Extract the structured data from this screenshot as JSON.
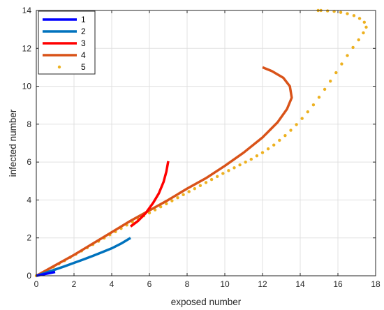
{
  "chart_data": {
    "type": "line",
    "title": "",
    "xlabel": "exposed number",
    "ylabel": "infected number",
    "xlim": [
      0,
      18
    ],
    "ylim": [
      0,
      14
    ],
    "xticks": [
      0,
      2,
      4,
      6,
      8,
      10,
      12,
      14,
      16,
      18
    ],
    "yticks": [
      0,
      2,
      4,
      6,
      8,
      10,
      12,
      14
    ],
    "xtick_labels": [
      "0",
      "2",
      "4",
      "6",
      "8",
      "10",
      "12",
      "14",
      "16",
      "18"
    ],
    "ytick_labels": [
      "0",
      "2",
      "4",
      "6",
      "8",
      "10",
      "12",
      "14"
    ],
    "grid": true,
    "legend_position": "top-left",
    "series": [
      {
        "name": "1",
        "style": "line",
        "color": "#0000ff",
        "points": [
          [
            0,
            0
          ],
          [
            0.5,
            0.1
          ],
          [
            1,
            0.2
          ]
        ]
      },
      {
        "name": "2",
        "style": "line",
        "color": "#0072bd",
        "points": [
          [
            0,
            0
          ],
          [
            0.5,
            0.16
          ],
          [
            1,
            0.33
          ],
          [
            1.5,
            0.5
          ],
          [
            2,
            0.68
          ],
          [
            2.5,
            0.86
          ],
          [
            3,
            1.05
          ],
          [
            3.5,
            1.25
          ],
          [
            4,
            1.45
          ],
          [
            4.5,
            1.7
          ],
          [
            5,
            2.0
          ]
        ]
      },
      {
        "name": "3",
        "style": "line",
        "color": "#ff0000",
        "points": [
          [
            5.0,
            2.6
          ],
          [
            5.4,
            2.9
          ],
          [
            5.8,
            3.3
          ],
          [
            6.2,
            3.85
          ],
          [
            6.5,
            4.35
          ],
          [
            6.75,
            4.95
          ],
          [
            6.9,
            5.5
          ],
          [
            7.0,
            6.05
          ]
        ]
      },
      {
        "name": "4",
        "style": "line",
        "color": "#d95319",
        "points": [
          [
            0,
            0
          ],
          [
            1,
            0.55
          ],
          [
            2,
            1.1
          ],
          [
            3,
            1.7
          ],
          [
            4,
            2.3
          ],
          [
            5,
            2.9
          ],
          [
            6,
            3.45
          ],
          [
            7,
            4.0
          ],
          [
            8,
            4.6
          ],
          [
            9,
            5.15
          ],
          [
            10,
            5.8
          ],
          [
            11,
            6.5
          ],
          [
            12,
            7.3
          ],
          [
            12.8,
            8.1
          ],
          [
            13.3,
            8.8
          ],
          [
            13.55,
            9.4
          ],
          [
            13.45,
            10.0
          ],
          [
            13.1,
            10.45
          ],
          [
            12.5,
            10.8
          ],
          [
            12.0,
            11.0
          ]
        ]
      },
      {
        "name": "5",
        "style": "markers",
        "color": "#edb120",
        "points": [
          [
            0,
            0
          ],
          [
            0.3,
            0.15
          ],
          [
            0.6,
            0.3
          ],
          [
            0.9,
            0.46
          ],
          [
            1.2,
            0.63
          ],
          [
            1.5,
            0.8
          ],
          [
            1.8,
            0.97
          ],
          [
            2.1,
            1.14
          ],
          [
            2.4,
            1.31
          ],
          [
            2.7,
            1.48
          ],
          [
            3.0,
            1.65
          ],
          [
            3.3,
            1.82
          ],
          [
            3.6,
            1.99
          ],
          [
            3.9,
            2.16
          ],
          [
            4.2,
            2.33
          ],
          [
            4.5,
            2.5
          ],
          [
            4.8,
            2.68
          ],
          [
            5.1,
            2.84
          ],
          [
            5.4,
            3.0
          ],
          [
            5.7,
            3.16
          ],
          [
            6.0,
            3.32
          ],
          [
            6.3,
            3.48
          ],
          [
            6.6,
            3.64
          ],
          [
            6.9,
            3.8
          ],
          [
            7.2,
            3.96
          ],
          [
            7.5,
            4.12
          ],
          [
            7.8,
            4.28
          ],
          [
            8.1,
            4.44
          ],
          [
            8.4,
            4.6
          ],
          [
            8.7,
            4.76
          ],
          [
            9.0,
            4.92
          ],
          [
            9.3,
            5.08
          ],
          [
            9.6,
            5.24
          ],
          [
            9.9,
            5.4
          ],
          [
            10.2,
            5.55
          ],
          [
            10.5,
            5.7
          ],
          [
            10.8,
            5.85
          ],
          [
            11.1,
            6.0
          ],
          [
            11.4,
            6.15
          ],
          [
            11.7,
            6.33
          ],
          [
            12.0,
            6.5
          ],
          [
            12.3,
            6.7
          ],
          [
            12.6,
            6.9
          ],
          [
            12.9,
            7.15
          ],
          [
            13.2,
            7.4
          ],
          [
            13.5,
            7.68
          ],
          [
            13.8,
            7.98
          ],
          [
            14.1,
            8.3
          ],
          [
            14.4,
            8.65
          ],
          [
            14.7,
            9.02
          ],
          [
            15.0,
            9.42
          ],
          [
            15.3,
            9.84
          ],
          [
            15.6,
            10.27
          ],
          [
            15.9,
            10.72
          ],
          [
            16.2,
            11.18
          ],
          [
            16.5,
            11.62
          ],
          [
            16.8,
            12.05
          ],
          [
            17.1,
            12.45
          ],
          [
            17.35,
            12.82
          ],
          [
            17.5,
            13.12
          ],
          [
            17.4,
            13.38
          ],
          [
            17.15,
            13.58
          ],
          [
            16.85,
            13.73
          ],
          [
            16.5,
            13.83
          ],
          [
            16.15,
            13.9
          ],
          [
            15.8,
            13.95
          ],
          [
            15.45,
            13.98
          ],
          [
            15.1,
            14.0
          ],
          [
            14.95,
            14.0
          ]
        ]
      }
    ]
  }
}
